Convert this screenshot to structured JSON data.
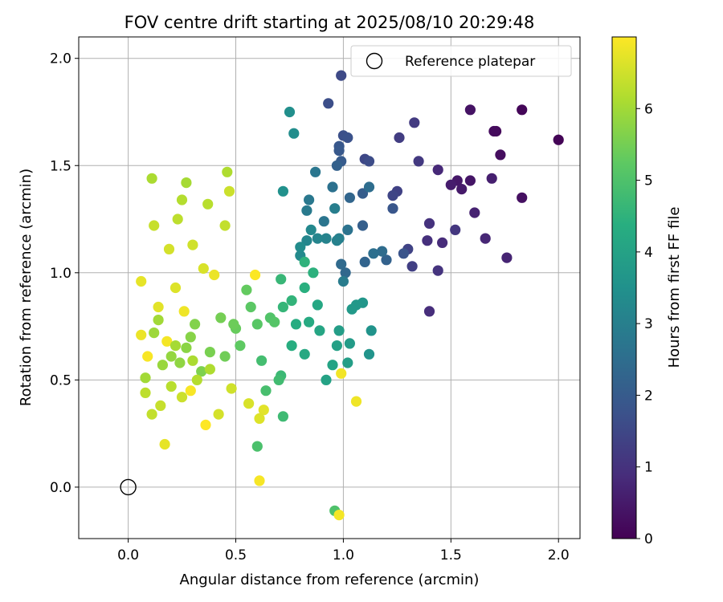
{
  "chart_data": {
    "type": "scatter",
    "title": "FOV centre drift starting at 2025/08/10 20:29:48",
    "xlabel": "Angular distance from reference (arcmin)",
    "ylabel": "Rotation from reference (arcmin)",
    "xlim": [
      -0.23,
      2.1
    ],
    "ylim": [
      -0.24,
      2.1
    ],
    "xticks": [
      0.0,
      0.5,
      1.0,
      1.5,
      2.0
    ],
    "xtick_labels": [
      "0.0",
      "0.5",
      "1.0",
      "1.5",
      "2.0"
    ],
    "yticks": [
      0.0,
      0.5,
      1.0,
      1.5,
      2.0
    ],
    "ytick_labels": [
      "0.0",
      "0.5",
      "1.0",
      "1.5",
      "2.0"
    ],
    "grid": true,
    "legend": {
      "position": "upper right",
      "entries": [
        {
          "label": "Reference platepar",
          "marker": "open-circle"
        }
      ]
    },
    "reference_point": {
      "x": 0.0,
      "y": 0.0
    },
    "colorbar": {
      "label": "Hours from first FF file",
      "colormap": "viridis",
      "range": [
        0,
        7.0
      ],
      "ticks": [
        0,
        1,
        2,
        3,
        4,
        5,
        6
      ],
      "tick_labels": [
        "0",
        "1",
        "2",
        "3",
        "4",
        "5",
        "6"
      ]
    },
    "point_columns": [
      "x",
      "y",
      "hours"
    ],
    "points": [
      [
        2.0,
        1.62,
        0.05
      ],
      [
        1.83,
        1.76,
        0.1
      ],
      [
        1.71,
        1.66,
        0.15
      ],
      [
        1.7,
        1.66,
        0.2
      ],
      [
        1.73,
        1.55,
        0.25
      ],
      [
        1.83,
        1.35,
        0.3
      ],
      [
        1.59,
        1.76,
        0.35
      ],
      [
        1.59,
        1.43,
        0.4
      ],
      [
        1.53,
        1.43,
        0.45
      ],
      [
        1.55,
        1.39,
        0.5
      ],
      [
        1.5,
        1.41,
        0.55
      ],
      [
        1.69,
        1.44,
        0.6
      ],
      [
        1.61,
        1.28,
        0.65
      ],
      [
        1.76,
        1.07,
        0.7
      ],
      [
        1.66,
        1.16,
        0.75
      ],
      [
        1.44,
        1.48,
        0.8
      ],
      [
        1.46,
        1.14,
        0.85
      ],
      [
        1.4,
        0.82,
        0.9
      ],
      [
        1.39,
        1.15,
        0.95
      ],
      [
        1.4,
        1.23,
        1.0
      ],
      [
        1.44,
        1.01,
        1.05
      ],
      [
        1.52,
        1.2,
        1.1
      ],
      [
        1.35,
        1.52,
        1.15
      ],
      [
        1.33,
        1.7,
        1.2
      ],
      [
        1.26,
        1.63,
        1.25
      ],
      [
        1.32,
        1.03,
        1.3
      ],
      [
        1.25,
        1.38,
        1.35
      ],
      [
        1.3,
        1.11,
        1.4
      ],
      [
        1.23,
        1.36,
        1.45
      ],
      [
        1.1,
        1.53,
        1.5
      ],
      [
        0.99,
        1.92,
        1.55
      ],
      [
        1.12,
        1.52,
        1.6
      ],
      [
        0.93,
        1.79,
        1.65
      ],
      [
        1.0,
        1.64,
        1.7
      ],
      [
        1.02,
        1.63,
        1.75
      ],
      [
        1.28,
        1.09,
        1.8
      ],
      [
        1.23,
        1.3,
        1.85
      ],
      [
        0.98,
        1.59,
        1.9
      ],
      [
        0.98,
        1.57,
        1.95
      ],
      [
        0.99,
        1.52,
        2.0
      ],
      [
        1.09,
        1.37,
        2.05
      ],
      [
        1.09,
        1.22,
        2.1
      ],
      [
        0.97,
        1.5,
        2.15
      ],
      [
        1.2,
        1.06,
        2.2
      ],
      [
        1.1,
        1.05,
        2.25
      ],
      [
        1.03,
        1.35,
        2.3
      ],
      [
        1.01,
        1.0,
        2.35
      ],
      [
        0.99,
        1.04,
        2.4
      ],
      [
        1.18,
        1.1,
        2.45
      ],
      [
        1.12,
        1.4,
        2.5
      ],
      [
        1.14,
        1.09,
        2.55
      ],
      [
        0.95,
        1.4,
        2.6
      ],
      [
        1.02,
        1.2,
        2.65
      ],
      [
        0.91,
        1.24,
        2.7
      ],
      [
        0.87,
        1.47,
        2.75
      ],
      [
        0.84,
        1.34,
        2.8
      ],
      [
        0.83,
        1.29,
        2.85
      ],
      [
        1.0,
        0.96,
        2.9
      ],
      [
        0.96,
        1.3,
        2.95
      ],
      [
        0.98,
        1.16,
        3.0
      ],
      [
        0.97,
        1.15,
        3.05
      ],
      [
        0.92,
        1.16,
        3.1
      ],
      [
        0.88,
        1.16,
        3.15
      ],
      [
        0.83,
        1.15,
        3.2
      ],
      [
        0.85,
        1.2,
        3.25
      ],
      [
        0.8,
        1.08,
        3.3
      ],
      [
        0.8,
        1.12,
        3.35
      ],
      [
        0.77,
        1.65,
        3.4
      ],
      [
        0.75,
        1.75,
        3.45
      ],
      [
        0.72,
        1.38,
        3.5
      ],
      [
        1.13,
        0.73,
        3.55
      ],
      [
        1.12,
        0.62,
        3.6
      ],
      [
        1.09,
        0.86,
        3.65
      ],
      [
        1.06,
        0.85,
        3.7
      ],
      [
        1.04,
        0.83,
        3.75
      ],
      [
        1.03,
        0.67,
        3.8
      ],
      [
        0.98,
        0.73,
        3.85
      ],
      [
        1.02,
        0.58,
        3.9
      ],
      [
        0.97,
        0.66,
        3.95
      ],
      [
        0.92,
        0.5,
        4.0
      ],
      [
        0.95,
        0.57,
        4.05
      ],
      [
        0.89,
        0.73,
        4.1
      ],
      [
        0.88,
        0.85,
        4.15
      ],
      [
        0.82,
        0.62,
        4.2
      ],
      [
        0.84,
        0.77,
        4.25
      ],
      [
        0.78,
        0.76,
        4.3
      ],
      [
        0.76,
        0.66,
        4.35
      ],
      [
        0.82,
        0.93,
        4.4
      ],
      [
        0.86,
        1.0,
        4.45
      ],
      [
        0.82,
        1.05,
        4.5
      ],
      [
        0.76,
        0.87,
        4.55
      ],
      [
        0.72,
        0.84,
        4.6
      ],
      [
        0.71,
        0.97,
        4.65
      ],
      [
        0.71,
        0.52,
        4.7
      ],
      [
        0.72,
        0.33,
        4.75
      ],
      [
        0.7,
        0.5,
        4.8
      ],
      [
        0.62,
        0.59,
        4.85
      ],
      [
        0.64,
        0.45,
        4.9
      ],
      [
        0.6,
        0.19,
        4.95
      ],
      [
        0.96,
        -0.11,
        5.0
      ],
      [
        0.66,
        0.79,
        5.05
      ],
      [
        0.68,
        0.77,
        5.1
      ],
      [
        0.6,
        0.76,
        5.15
      ],
      [
        0.57,
        0.84,
        5.2
      ],
      [
        0.52,
        0.66,
        5.25
      ],
      [
        0.55,
        0.92,
        5.3
      ],
      [
        0.5,
        0.74,
        5.35
      ],
      [
        0.49,
        0.76,
        5.4
      ],
      [
        0.45,
        0.61,
        5.45
      ],
      [
        0.43,
        0.79,
        5.5
      ],
      [
        0.38,
        0.63,
        5.55
      ],
      [
        0.34,
        0.54,
        5.6
      ],
      [
        0.31,
        0.76,
        5.65
      ],
      [
        0.29,
        0.7,
        5.7
      ],
      [
        0.27,
        0.65,
        5.75
      ],
      [
        0.24,
        0.58,
        5.8
      ],
      [
        0.2,
        0.61,
        5.85
      ],
      [
        0.16,
        0.57,
        5.9
      ],
      [
        0.12,
        0.72,
        5.95
      ],
      [
        0.08,
        0.51,
        6.0
      ],
      [
        0.27,
        1.42,
        6.05
      ],
      [
        0.11,
        1.44,
        6.1
      ],
      [
        0.46,
        1.47,
        6.15
      ],
      [
        0.25,
        1.34,
        6.2
      ],
      [
        0.37,
        1.32,
        6.25
      ],
      [
        0.23,
        1.25,
        6.3
      ],
      [
        0.45,
        1.22,
        6.35
      ],
      [
        0.12,
        1.22,
        6.4
      ],
      [
        0.47,
        1.38,
        6.45
      ],
      [
        0.3,
        1.13,
        6.5
      ],
      [
        0.19,
        1.11,
        6.55
      ],
      [
        0.35,
        1.02,
        6.6
      ],
      [
        0.22,
        0.93,
        6.65
      ],
      [
        0.14,
        0.84,
        6.7
      ],
      [
        0.06,
        0.96,
        6.75
      ],
      [
        0.4,
        0.99,
        6.8
      ],
      [
        0.26,
        0.82,
        6.85
      ],
      [
        0.18,
        0.68,
        6.9
      ],
      [
        0.09,
        0.61,
        6.95
      ],
      [
        0.36,
        0.29,
        7.0
      ],
      [
        0.59,
        0.99,
        6.98
      ],
      [
        0.29,
        0.45,
        6.95
      ],
      [
        0.61,
        0.03,
        6.92
      ],
      [
        0.98,
        -0.13,
        6.9
      ],
      [
        0.99,
        0.53,
        6.88
      ],
      [
        1.06,
        0.4,
        6.85
      ],
      [
        0.06,
        0.71,
        6.8
      ],
      [
        0.17,
        0.2,
        6.75
      ],
      [
        0.63,
        0.36,
        6.7
      ],
      [
        0.61,
        0.32,
        6.65
      ],
      [
        0.56,
        0.39,
        6.6
      ],
      [
        0.42,
        0.34,
        6.55
      ],
      [
        0.48,
        0.46,
        6.5
      ],
      [
        0.25,
        0.42,
        6.45
      ],
      [
        0.15,
        0.38,
        6.4
      ],
      [
        0.11,
        0.34,
        6.35
      ],
      [
        0.08,
        0.44,
        6.3
      ],
      [
        0.2,
        0.47,
        6.25
      ],
      [
        0.32,
        0.5,
        6.2
      ],
      [
        0.38,
        0.55,
        6.15
      ],
      [
        0.3,
        0.59,
        6.1
      ],
      [
        0.22,
        0.66,
        6.05
      ],
      [
        0.14,
        0.78,
        6.0
      ]
    ]
  }
}
